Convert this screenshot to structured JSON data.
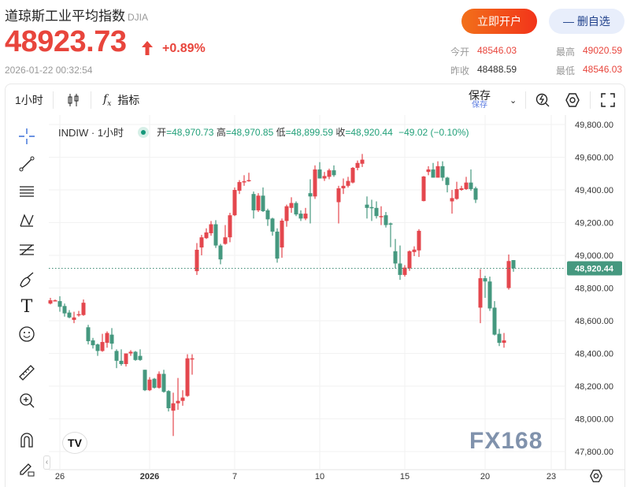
{
  "header": {
    "title": "道琼斯工业平均指数",
    "symbol": "DJIA",
    "price": "48923.73",
    "change_pct": "+0.89%",
    "timestamp": "2026-01-22 00:32:54",
    "open_account_label": "立即开户",
    "remove_watch_label": "— 删自选"
  },
  "stats": {
    "open_label": "今开",
    "open": "48546.03",
    "high_label": "最高",
    "high": "49020.59",
    "prev_close_label": "昨收",
    "prev_close": "48488.59",
    "low_label": "最低",
    "low": "48546.03"
  },
  "toolbar": {
    "interval": "1小时",
    "indicators_label": "指标",
    "save_label": "保存",
    "save_sub": "保存"
  },
  "legend": {
    "symbol": "INDIW · 1小时",
    "open_label": "开",
    "open": "=48,970.73",
    "high_label": "高",
    "high": "=48,970.85",
    "low_label": "低",
    "low": "=48,899.59",
    "close_label": "收",
    "close": "=48,920.44",
    "change": "−49.02 (−0.10%)"
  },
  "colors": {
    "up": "#e4474e",
    "down": "#45987f",
    "accent": "#f2701a"
  },
  "watermark": "FX168",
  "chart_data": {
    "type": "candlestick",
    "ylim": [
      47700,
      49900
    ],
    "y_ticks": [
      "49,800.00",
      "49,600.00",
      "49,400.00",
      "49,200.00",
      "49,000.00",
      "48,800.00",
      "48,600.00",
      "48,400.00",
      "48,200.00",
      "48,000.00",
      "47,800.00"
    ],
    "y_tick_values": [
      49800,
      49600,
      49400,
      49200,
      49000,
      48800,
      48600,
      48400,
      48200,
      48000,
      47800
    ],
    "current_price": 48920.44,
    "current_price_label": "48,920.44",
    "x_ticks": [
      {
        "label": "26",
        "index": 2
      },
      {
        "label": "2026",
        "index": 21
      },
      {
        "label": "7",
        "index": 39
      },
      {
        "label": "10",
        "index": 57
      },
      {
        "label": "15",
        "index": 75
      },
      {
        "label": "20",
        "index": 92
      },
      {
        "label": "23",
        "index": 106
      }
    ],
    "ohlc": [
      [
        48705,
        48740,
        48700,
        48725
      ],
      [
        48725,
        48730,
        48720,
        48725
      ],
      [
        48720,
        48750,
        48655,
        48685
      ],
      [
        48690,
        48705,
        48625,
        48645
      ],
      [
        48650,
        48665,
        48615,
        48620
      ],
      [
        48605,
        48655,
        48585,
        48620
      ],
      [
        48635,
        48660,
        48625,
        48640
      ],
      [
        48635,
        48730,
        48630,
        48710
      ],
      [
        48560,
        48575,
        48455,
        48475
      ],
      [
        48480,
        48495,
        48430,
        48450
      ],
      [
        48455,
        48460,
        48385,
        48415
      ],
      [
        48415,
        48520,
        48410,
        48470
      ],
      [
        48465,
        48535,
        48435,
        48525
      ],
      [
        48515,
        48555,
        48425,
        48460
      ],
      [
        48415,
        48425,
        48310,
        48355
      ],
      [
        48355,
        48425,
        48325,
        48335
      ],
      [
        48335,
        48400,
        48320,
        48400
      ],
      [
        48400,
        48420,
        48385,
        48410
      ],
      [
        48410,
        48415,
        48355,
        48360
      ],
      [
        48385,
        48425,
        48355,
        48360
      ],
      [
        48300,
        48300,
        48170,
        48175
      ],
      [
        48175,
        48255,
        48170,
        48240
      ],
      [
        48245,
        48250,
        48185,
        48190
      ],
      [
        48190,
        48290,
        48185,
        48275
      ],
      [
        48275,
        48300,
        48160,
        48165
      ],
      [
        48170,
        48175,
        48045,
        48065
      ],
      [
        48050,
        48160,
        47895,
        48095
      ],
      [
        48095,
        48250,
        48055,
        48110
      ],
      [
        48110,
        48175,
        48080,
        48130
      ],
      [
        48140,
        48395,
        48135,
        48370
      ],
      [
        48370,
        48395,
        48270,
        48370
      ],
      [
        48903,
        49075,
        48880,
        49034
      ],
      [
        49048,
        49125,
        49000,
        49110
      ],
      [
        49105,
        49165,
        49100,
        49140
      ],
      [
        49135,
        49210,
        49120,
        49190
      ],
      [
        49190,
        49215,
        49045,
        49060
      ],
      [
        49060,
        49070,
        48945,
        48975
      ],
      [
        49070,
        49185,
        49065,
        49110
      ],
      [
        49110,
        49260,
        49080,
        49245
      ],
      [
        49245,
        49415,
        49240,
        49400
      ],
      [
        49395,
        49460,
        49375,
        49448
      ],
      [
        49450,
        49490,
        49425,
        49453
      ],
      [
        49455,
        49505,
        49450,
        49460
      ],
      [
        49375,
        49390,
        49225,
        49275
      ],
      [
        49275,
        49380,
        49265,
        49365
      ],
      [
        49365,
        49415,
        49265,
        49270
      ],
      [
        49275,
        49285,
        49180,
        49220
      ],
      [
        49225,
        49230,
        49120,
        49145
      ],
      [
        49145,
        49165,
        48955,
        48980
      ],
      [
        49048,
        49225,
        48985,
        49212
      ],
      [
        49210,
        49310,
        49175,
        49300
      ],
      [
        49290,
        49355,
        49260,
        49320
      ],
      [
        49320,
        49330,
        49240,
        49250
      ],
      [
        49255,
        49275,
        49210,
        49225
      ],
      [
        49225,
        49290,
        49215,
        49255
      ],
      [
        49380,
        49465,
        49195,
        49360
      ],
      [
        49360,
        49550,
        49345,
        49525
      ],
      [
        49525,
        49570,
        49470,
        49470
      ],
      [
        49470,
        49510,
        49455,
        49485
      ],
      [
        49480,
        49530,
        49465,
        49520
      ],
      [
        49520,
        49550,
        49480,
        49490
      ],
      [
        49325,
        49425,
        49195,
        49410
      ],
      [
        49410,
        49470,
        49375,
        49425
      ],
      [
        49425,
        49480,
        49415,
        49455
      ],
      [
        49445,
        49540,
        49440,
        49535
      ],
      [
        49535,
        49580,
        49520,
        49565
      ],
      [
        49560,
        49620,
        49540,
        49585
      ],
      [
        49310,
        49360,
        49225,
        49290
      ],
      [
        49295,
        49340,
        49210,
        49290
      ],
      [
        49290,
        49330,
        49225,
        49240
      ],
      [
        49240,
        49300,
        49185,
        49240
      ],
      [
        49245,
        49265,
        49170,
        49185
      ],
      [
        49195,
        49200,
        49050,
        49190
      ],
      [
        49025,
        49100,
        48920,
        48950
      ],
      [
        48950,
        49060,
        48850,
        48880
      ],
      [
        48880,
        48940,
        48870,
        48925
      ],
      [
        48920,
        49030,
        48905,
        49025
      ],
      [
        49020,
        49055,
        48995,
        49035
      ],
      [
        49030,
        49160,
        48990,
        49150
      ],
      [
        49332,
        49485,
        49330,
        49482
      ],
      [
        49510,
        49545,
        49490,
        49525
      ],
      [
        49525,
        49565,
        49475,
        49475
      ],
      [
        49475,
        49575,
        49475,
        49545
      ],
      [
        49545,
        49575,
        49455,
        49475
      ],
      [
        49475,
        49480,
        49385,
        49430
      ],
      [
        49330,
        49400,
        49255,
        49350
      ],
      [
        49345,
        49450,
        49340,
        49405
      ],
      [
        49400,
        49425,
        49395,
        49410
      ],
      [
        49405,
        49480,
        49400,
        49445
      ],
      [
        49445,
        49525,
        49395,
        49405
      ],
      [
        49410,
        49420,
        49320,
        49340
      ],
      [
        48680,
        48915,
        48585,
        48860
      ],
      [
        48860,
        48875,
        48740,
        48840
      ],
      [
        48840,
        48870,
        48660,
        48675
      ],
      [
        48680,
        48720,
        48510,
        48515
      ],
      [
        48520,
        48550,
        48445,
        48465
      ],
      [
        48465,
        48525,
        48435,
        48480
      ],
      [
        48800,
        49005,
        48790,
        48965
      ],
      [
        48970.73,
        48970.85,
        48899.59,
        48920.44
      ]
    ]
  }
}
